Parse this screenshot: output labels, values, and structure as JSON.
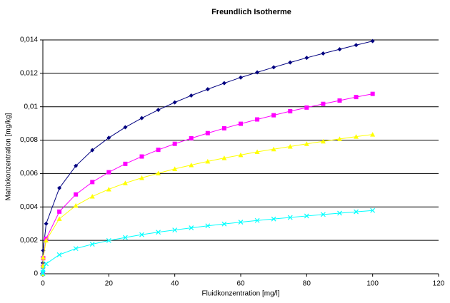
{
  "chart_data": {
    "type": "scatter-line",
    "title": "Freundlich Isotherme",
    "x_label": "Fluidkonzentration [mg/l]",
    "y_label": "Matrixkonzentration [mg/kg]",
    "x": [
      0,
      0.01,
      0.1,
      1,
      5,
      10,
      15,
      20,
      25,
      30,
      35,
      40,
      45,
      50,
      55,
      60,
      65,
      70,
      75,
      80,
      85,
      90,
      95,
      100
    ],
    "series": [
      {
        "color": "#000080",
        "marker": "diamond",
        "values": [
          0,
          0.00065,
          0.00139,
          0.003,
          0.00513,
          0.00646,
          0.0074,
          0.00814,
          0.00877,
          0.00932,
          0.00981,
          0.01026,
          0.01067,
          0.01105,
          0.01141,
          0.01175,
          0.01206,
          0.01236,
          0.01265,
          0.01293,
          0.01319,
          0.01344,
          0.01369,
          0.01393
        ]
      },
      {
        "color": "#ff00ff",
        "marker": "square",
        "values": [
          0,
          0.00041,
          0.00093,
          0.0021,
          0.00372,
          0.00475,
          0.00549,
          0.00608,
          0.00658,
          0.00702,
          0.00742,
          0.00778,
          0.00811,
          0.00842,
          0.00871,
          0.00898,
          0.00924,
          0.00949,
          0.00973,
          0.00995,
          0.01017,
          0.01037,
          0.01058,
          0.01077
        ]
      },
      {
        "color": "#ffff00",
        "marker": "triangle",
        "values": [
          0,
          0.00048,
          0.00098,
          0.002,
          0.00329,
          0.00408,
          0.00463,
          0.00506,
          0.00543,
          0.00574,
          0.00602,
          0.00628,
          0.00651,
          0.00673,
          0.00693,
          0.00711,
          0.0073,
          0.00746,
          0.00762,
          0.00778,
          0.00793,
          0.00807,
          0.00821,
          0.00834
        ]
      },
      {
        "color": "#00ffff",
        "marker": "x",
        "values": [
          0,
          9e-05,
          0.00024,
          0.0006,
          0.00114,
          0.00151,
          0.00177,
          0.00199,
          0.00217,
          0.00234,
          0.00249,
          0.00262,
          0.00275,
          0.00287,
          0.00298,
          0.00309,
          0.00319,
          0.00328,
          0.00337,
          0.00346,
          0.00355,
          0.00363,
          0.00371,
          0.00379
        ]
      }
    ],
    "xlim": [
      0,
      120
    ],
    "xticks": [
      0,
      20,
      40,
      60,
      80,
      100,
      120
    ],
    "ylim": [
      0,
      0.014
    ],
    "yticks": [
      0,
      {
        "value": 0.002,
        "label": "0,002"
      },
      {
        "value": 0.004,
        "label": "0,004"
      },
      {
        "value": 0.006,
        "label": "0,006"
      },
      {
        "value": 0.008,
        "label": "0,008"
      },
      {
        "value": 0.01,
        "label": "0,01"
      },
      {
        "value": 0.012,
        "label": "0,012"
      },
      {
        "value": 0.014,
        "label": "0,014"
      }
    ],
    "grid": true
  }
}
